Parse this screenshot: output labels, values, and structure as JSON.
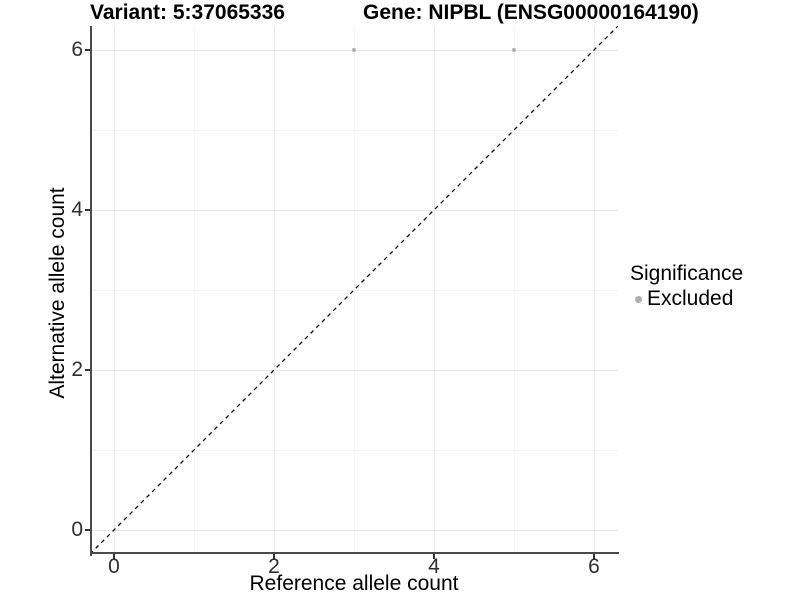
{
  "chart_data": {
    "type": "scatter",
    "title_left": "Variant: 5:37065336",
    "title_right": "Gene: NIPBL (ENSG00000164190)",
    "xlabel": "Reference allele count",
    "ylabel": "Alternative allele count",
    "xlim": [
      0,
      6
    ],
    "ylim": [
      0,
      6
    ],
    "axis_range": [
      -0.3,
      6.3
    ],
    "major_ticks": [
      0,
      2,
      4,
      6
    ],
    "x_tick_labels": [
      "0",
      "2",
      "4",
      "6"
    ],
    "y_tick_labels": [
      "0",
      "2",
      "4",
      "6"
    ],
    "minor_gridlines": [
      1,
      3,
      5
    ],
    "grid": true,
    "points": [
      {
        "x": 3,
        "y": 6,
        "significance": "Excluded"
      },
      {
        "x": 5,
        "y": 6,
        "significance": "Excluded"
      }
    ],
    "reference_line": {
      "type": "identity",
      "style": "dashed",
      "from": [
        -0.3,
        -0.3
      ],
      "to": [
        6.3,
        6.3
      ]
    },
    "legend": {
      "position": "right",
      "title": "Significance",
      "entries": [
        {
          "label": "Excluded",
          "color": "#b0b0b0",
          "marker": "circle"
        }
      ]
    },
    "colors": {
      "point": "#b0b0b0",
      "dashed_line": "#000000",
      "major_grid": "#e8e8e8",
      "minor_grid": "#f4f4f4",
      "axis_line": "#4a4a4a",
      "tick_label": "#303030",
      "text": "#000000",
      "background": "#ffffff"
    }
  }
}
